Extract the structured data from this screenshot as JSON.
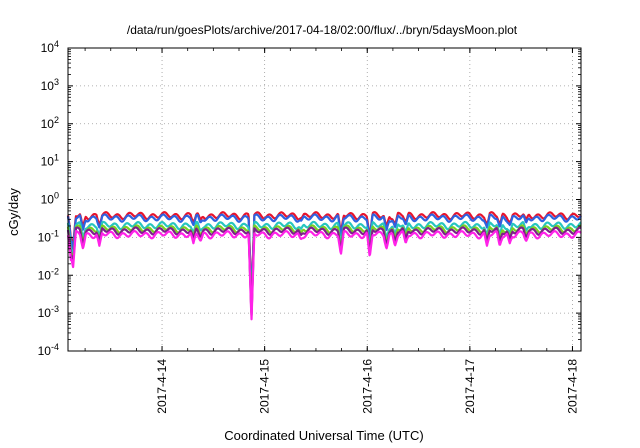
{
  "chart_data": {
    "type": "line",
    "title": "/data/run/goesPlots/archive/2017-04-18/02:00/flux/../bryn/5daysMoon.plot",
    "xlabel": "Coordinated Universal Time (UTC)",
    "ylabel": "cGy/day",
    "yscale": "log",
    "ylim": [
      0.0001,
      10000
    ],
    "xlim": [
      "2017-04-13T02:00",
      "2017-04-18T02:00"
    ],
    "grid": true,
    "legend": "none",
    "y_ticks": [
      {
        "base": "10",
        "exp": "-4"
      },
      {
        "base": "10",
        "exp": "-3"
      },
      {
        "base": "10",
        "exp": "-2"
      },
      {
        "base": "10",
        "exp": "-1"
      },
      {
        "base": "10",
        "exp": "0"
      },
      {
        "base": "10",
        "exp": "1"
      },
      {
        "base": "10",
        "exp": "2"
      },
      {
        "base": "10",
        "exp": "3"
      },
      {
        "base": "10",
        "exp": "4"
      }
    ],
    "x_ticks": [
      "2017-4-14",
      "2017-4-15",
      "2017-4-16",
      "2017-4-17",
      "2017-4-18"
    ],
    "series": [
      {
        "color": "#e8132c",
        "baseline": 0.38
      },
      {
        "color": "#2e62e0",
        "baseline": 0.33
      },
      {
        "color": "#27c5c0",
        "baseline": 0.21
      },
      {
        "color": "#79d022",
        "baseline": 0.17
      },
      {
        "color": "#7d1f8a",
        "baseline": 0.15
      },
      {
        "color": "#ff22e8",
        "baseline": 0.12
      }
    ],
    "dips": [
      {
        "t": "2017-04-13T02:40",
        "min": 0.03
      },
      {
        "t": "2017-04-13T03:10",
        "min": 0.015
      },
      {
        "t": "2017-04-13T05:30",
        "min": 0.05
      },
      {
        "t": "2017-04-13T09:20",
        "min": 0.06
      },
      {
        "t": "2017-04-14T07:20",
        "min": 0.07
      },
      {
        "t": "2017-04-14T09:00",
        "min": 0.08
      },
      {
        "t": "2017-04-14T20:55",
        "min": 0.0006
      },
      {
        "t": "2017-04-15T08:30",
        "min": 0.09
      },
      {
        "t": "2017-04-15T17:50",
        "min": 0.035
      },
      {
        "t": "2017-04-16T00:35",
        "min": 0.03
      },
      {
        "t": "2017-04-16T04:30",
        "min": 0.05
      },
      {
        "t": "2017-04-16T06:30",
        "min": 0.06
      },
      {
        "t": "2017-04-16T09:00",
        "min": 0.07
      },
      {
        "t": "2017-04-17T04:00",
        "min": 0.06
      },
      {
        "t": "2017-04-17T07:00",
        "min": 0.06
      },
      {
        "t": "2017-04-17T09:20",
        "min": 0.07
      },
      {
        "t": "2017-04-17T13:10",
        "min": 0.08
      }
    ]
  }
}
